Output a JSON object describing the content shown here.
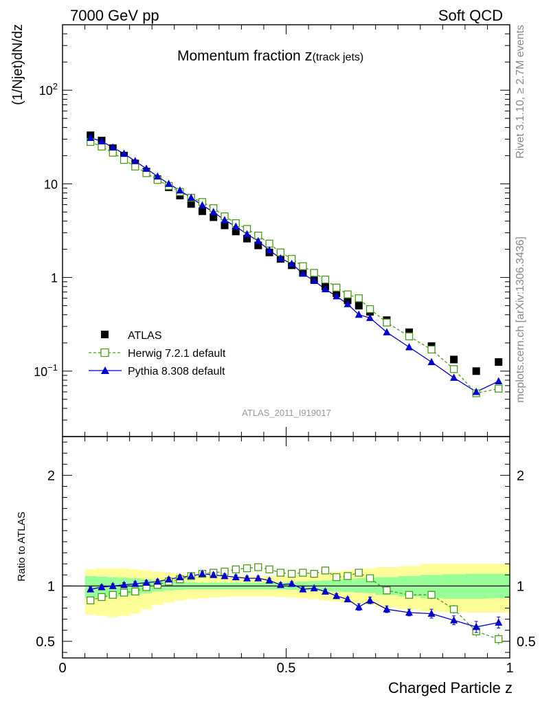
{
  "header": {
    "left": "7000 GeV pp",
    "right": "Soft QCD"
  },
  "side_labels": {
    "rivet": "Rivet 3.1.10, ≥ 2.7M events",
    "mcplots": "mcplots.cern.ch [arXiv:1306.3436]"
  },
  "main_title": {
    "text": "Momentum fraction ",
    "math": "z",
    "sub": "(track jets)"
  },
  "analysis_id": "ATLAS_2011_I919017",
  "colors": {
    "atlas": "#000000",
    "herwig": "#4a9a1a",
    "pythia": "#0000cc",
    "band_outer": "#ffff99",
    "band_inner": "#99ff99"
  },
  "chart_data": [
    {
      "type": "scatter",
      "name": "main",
      "ylabel": "(1/Njet)dN/dz",
      "yscale": "log",
      "xlim": [
        0,
        1
      ],
      "ylim": [
        0.02,
        500
      ],
      "yticks_major": [
        {
          "value": 0.1,
          "base": "10",
          "exp": "−1"
        },
        {
          "value": 1,
          "label": "1"
        },
        {
          "value": 10,
          "label": "10"
        },
        {
          "value": 100,
          "base": "10",
          "exp": "2"
        }
      ],
      "legend_position": "center-left",
      "series": [
        {
          "name": "ATLAS",
          "marker": "filled-square",
          "x": [
            0.0625,
            0.0875,
            0.1125,
            0.1375,
            0.1625,
            0.1875,
            0.2125,
            0.2375,
            0.2625,
            0.2875,
            0.3125,
            0.3375,
            0.3625,
            0.3875,
            0.4125,
            0.4375,
            0.4625,
            0.4875,
            0.5125,
            0.5375,
            0.5625,
            0.5875,
            0.6125,
            0.6375,
            0.6625,
            0.6875,
            0.725,
            0.775,
            0.825,
            0.875,
            0.925,
            0.975
          ],
          "y": [
            33,
            29,
            24,
            20,
            16.5,
            13.5,
            11.2,
            9.2,
            7.5,
            6.1,
            5.1,
            4.4,
            3.6,
            3.1,
            2.6,
            2.2,
            1.85,
            1.58,
            1.35,
            1.12,
            0.95,
            0.8,
            0.68,
            0.57,
            0.5,
            0.43,
            0.35,
            0.26,
            0.185,
            0.133,
            0.1,
            0.125
          ]
        },
        {
          "name": "Herwig 7.2.1 default",
          "marker": "open-square",
          "line": "dashed",
          "x": [
            0.0625,
            0.0875,
            0.1125,
            0.1375,
            0.1625,
            0.1875,
            0.2125,
            0.2375,
            0.2625,
            0.2875,
            0.3125,
            0.3375,
            0.3625,
            0.3875,
            0.4125,
            0.4375,
            0.4625,
            0.4875,
            0.5125,
            0.5375,
            0.5625,
            0.5875,
            0.6125,
            0.6375,
            0.6625,
            0.6875,
            0.725,
            0.775,
            0.825,
            0.875,
            0.925,
            0.975
          ],
          "y": [
            28,
            25,
            21.5,
            18,
            15.3,
            13,
            11,
            9.5,
            8.2,
            7.1,
            6.4,
            5.5,
            4.5,
            3.8,
            3.3,
            2.8,
            2.3,
            1.85,
            1.58,
            1.32,
            1.12,
            0.95,
            0.78,
            0.66,
            0.6,
            0.46,
            0.33,
            0.235,
            0.17,
            0.105,
            0.058,
            0.065
          ]
        },
        {
          "name": "Pythia 8.308 default",
          "marker": "filled-triangle",
          "line": "solid",
          "x": [
            0.0625,
            0.0875,
            0.1125,
            0.1375,
            0.1625,
            0.1875,
            0.2125,
            0.2375,
            0.2625,
            0.2875,
            0.3125,
            0.3375,
            0.3625,
            0.3875,
            0.4125,
            0.4375,
            0.4625,
            0.4875,
            0.5125,
            0.5375,
            0.5625,
            0.5875,
            0.6125,
            0.6375,
            0.6625,
            0.6875,
            0.725,
            0.775,
            0.825,
            0.875,
            0.925,
            0.975
          ],
          "y": [
            31,
            28.5,
            24.5,
            21,
            17.5,
            14.5,
            12,
            10,
            8.5,
            7.1,
            5.9,
            5,
            4.1,
            3.5,
            2.9,
            2.45,
            1.95,
            1.6,
            1.4,
            1.1,
            0.92,
            0.75,
            0.63,
            0.52,
            0.4,
            0.37,
            0.26,
            0.18,
            0.125,
            0.085,
            0.06,
            0.078
          ]
        }
      ]
    },
    {
      "type": "line",
      "name": "ratio",
      "ylabel": "Ratio to ATLAS",
      "xlabel": "Charged Particle z",
      "xlim": [
        0,
        1
      ],
      "ylim": [
        0.35,
        2.35
      ],
      "yticks": [
        "0.5",
        "1",
        "2"
      ],
      "xticks": [
        "0",
        "0.5",
        "1"
      ],
      "reference_line": 1,
      "bands": {
        "x_edges": [
          0.05,
          0.075,
          0.1,
          0.125,
          0.15,
          0.175,
          0.2,
          0.225,
          0.25,
          0.275,
          0.3,
          0.325,
          0.35,
          0.375,
          0.4,
          0.425,
          0.45,
          0.475,
          0.5,
          0.525,
          0.55,
          0.575,
          0.6,
          0.625,
          0.65,
          0.675,
          0.7,
          0.75,
          0.8,
          0.85,
          0.9,
          0.95,
          1.0
        ],
        "inner_lo": [
          0.89,
          0.895,
          0.9,
          0.91,
          0.92,
          0.935,
          0.95,
          0.96,
          0.965,
          0.97,
          0.97,
          0.97,
          0.97,
          0.97,
          0.97,
          0.97,
          0.97,
          0.97,
          0.965,
          0.96,
          0.96,
          0.955,
          0.95,
          0.945,
          0.94,
          0.935,
          0.92,
          0.905,
          0.89,
          0.885,
          0.885,
          0.89
        ],
        "inner_hi": [
          1.09,
          1.085,
          1.08,
          1.075,
          1.07,
          1.06,
          1.05,
          1.045,
          1.04,
          1.035,
          1.03,
          1.03,
          1.03,
          1.03,
          1.03,
          1.03,
          1.03,
          1.03,
          1.035,
          1.04,
          1.045,
          1.05,
          1.06,
          1.065,
          1.07,
          1.075,
          1.08,
          1.09,
          1.1,
          1.105,
          1.11,
          1.11
        ],
        "outer_lo": [
          0.74,
          0.73,
          0.72,
          0.73,
          0.75,
          0.79,
          0.83,
          0.85,
          0.87,
          0.88,
          0.89,
          0.895,
          0.9,
          0.905,
          0.905,
          0.905,
          0.905,
          0.9,
          0.895,
          0.89,
          0.88,
          0.87,
          0.86,
          0.85,
          0.84,
          0.83,
          0.81,
          0.79,
          0.77,
          0.765,
          0.76,
          0.76
        ],
        "outer_hi": [
          1.15,
          1.16,
          1.16,
          1.16,
          1.15,
          1.14,
          1.13,
          1.12,
          1.11,
          1.1,
          1.095,
          1.09,
          1.09,
          1.09,
          1.09,
          1.09,
          1.09,
          1.09,
          1.095,
          1.1,
          1.11,
          1.12,
          1.13,
          1.14,
          1.15,
          1.16,
          1.17,
          1.18,
          1.2,
          1.2,
          1.2,
          1.2
        ]
      },
      "series": [
        {
          "name": "Herwig 7.2.1 default",
          "x": [
            0.0625,
            0.0875,
            0.1125,
            0.1375,
            0.1625,
            0.1875,
            0.2125,
            0.2375,
            0.2625,
            0.2875,
            0.3125,
            0.3375,
            0.3625,
            0.3875,
            0.4125,
            0.4375,
            0.4625,
            0.4875,
            0.5125,
            0.5375,
            0.5625,
            0.5875,
            0.6125,
            0.6375,
            0.6625,
            0.6875,
            0.725,
            0.775,
            0.825,
            0.875,
            0.925,
            0.975
          ],
          "y": [
            0.87,
            0.9,
            0.92,
            0.94,
            0.95,
            0.99,
            1.01,
            1.04,
            1.06,
            1.09,
            1.11,
            1.12,
            1.13,
            1.15,
            1.16,
            1.17,
            1.15,
            1.12,
            1.11,
            1.12,
            1.11,
            1.14,
            1.08,
            1.09,
            1.12,
            1.07,
            0.96,
            0.92,
            0.92,
            0.79,
            0.59,
            0.52
          ],
          "err": [
            0.02,
            0.02,
            0.02,
            0.02,
            0.02,
            0.02,
            0.02,
            0.02,
            0.02,
            0.02,
            0.02,
            0.02,
            0.02,
            0.02,
            0.02,
            0.02,
            0.02,
            0.02,
            0.02,
            0.02,
            0.02,
            0.02,
            0.02,
            0.02,
            0.03,
            0.03,
            0.03,
            0.03,
            0.04,
            0.04,
            0.05,
            0.05
          ]
        },
        {
          "name": "Pythia 8.308 default",
          "x": [
            0.0625,
            0.0875,
            0.1125,
            0.1375,
            0.1625,
            0.1875,
            0.2125,
            0.2375,
            0.2625,
            0.2875,
            0.3125,
            0.3375,
            0.3625,
            0.3875,
            0.4125,
            0.4375,
            0.4625,
            0.4875,
            0.5125,
            0.5375,
            0.5625,
            0.5875,
            0.6125,
            0.6375,
            0.6625,
            0.6875,
            0.725,
            0.775,
            0.825,
            0.875,
            0.925,
            0.975
          ],
          "y": [
            0.97,
            0.99,
            1.0,
            1.01,
            1.02,
            1.03,
            1.04,
            1.06,
            1.08,
            1.09,
            1.11,
            1.1,
            1.09,
            1.08,
            1.07,
            1.07,
            1.05,
            1.01,
            1.02,
            0.97,
            0.98,
            0.95,
            0.91,
            0.88,
            0.81,
            0.87,
            0.79,
            0.76,
            0.75,
            0.69,
            0.63,
            0.67
          ],
          "err": [
            0.02,
            0.02,
            0.02,
            0.02,
            0.02,
            0.02,
            0.02,
            0.02,
            0.02,
            0.02,
            0.02,
            0.02,
            0.02,
            0.02,
            0.02,
            0.02,
            0.02,
            0.02,
            0.02,
            0.02,
            0.02,
            0.02,
            0.02,
            0.02,
            0.03,
            0.03,
            0.03,
            0.03,
            0.04,
            0.04,
            0.05,
            0.05
          ]
        }
      ]
    }
  ]
}
